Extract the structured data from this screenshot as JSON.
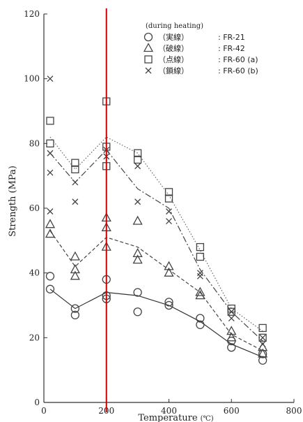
{
  "chart_data": {
    "type": "scatter",
    "xlabel": "Temperature",
    "xunit": "(℃)",
    "ylabel": "Strength (MPa)",
    "xlim": [
      0,
      800
    ],
    "ylim": [
      0,
      120
    ],
    "x_ticks": [
      "0",
      "200",
      "400",
      "600",
      "800"
    ],
    "y_ticks": [
      "0",
      "20",
      "40",
      "60",
      "80",
      "100",
      "120"
    ],
    "legend_title": "(during heating)",
    "legend_position": "top-right",
    "grid": false,
    "vertical_marker": {
      "x": 200,
      "color": "#cc0000"
    },
    "series": [
      {
        "name": "FR-21",
        "label": "〇（実線）",
        "marker": "circle",
        "line_style": "solid",
        "points": [
          [
            20,
            39
          ],
          [
            20,
            35
          ],
          [
            100,
            29
          ],
          [
            100,
            27
          ],
          [
            200,
            38
          ],
          [
            200,
            33
          ],
          [
            200,
            32
          ],
          [
            300,
            34
          ],
          [
            300,
            28
          ],
          [
            400,
            31
          ],
          [
            400,
            30
          ],
          [
            500,
            26
          ],
          [
            500,
            24
          ],
          [
            600,
            19
          ],
          [
            600,
            17
          ],
          [
            700,
            15
          ],
          [
            700,
            13
          ]
        ],
        "trend": [
          [
            20,
            35
          ],
          [
            100,
            29
          ],
          [
            200,
            34
          ],
          [
            300,
            33
          ],
          [
            400,
            30
          ],
          [
            500,
            25
          ],
          [
            600,
            18
          ],
          [
            700,
            14
          ]
        ]
      },
      {
        "name": "FR-42",
        "label": "△（破線）",
        "marker": "triangle",
        "line_style": "dashed",
        "points": [
          [
            20,
            55
          ],
          [
            20,
            52
          ],
          [
            100,
            45
          ],
          [
            100,
            41
          ],
          [
            100,
            39
          ],
          [
            200,
            57
          ],
          [
            200,
            54
          ],
          [
            200,
            48
          ],
          [
            300,
            56
          ],
          [
            300,
            46
          ],
          [
            300,
            44
          ],
          [
            400,
            42
          ],
          [
            400,
            40
          ],
          [
            500,
            34
          ],
          [
            500,
            33
          ],
          [
            600,
            22
          ],
          [
            600,
            20
          ],
          [
            700,
            17
          ],
          [
            700,
            15
          ]
        ],
        "trend": [
          [
            20,
            53
          ],
          [
            100,
            42
          ],
          [
            200,
            51
          ],
          [
            300,
            48
          ],
          [
            400,
            41
          ],
          [
            500,
            34
          ],
          [
            600,
            21
          ],
          [
            700,
            16
          ]
        ]
      },
      {
        "name": "FR-60 (a)",
        "label": "□（点線）",
        "marker": "square",
        "line_style": "dotted",
        "points": [
          [
            20,
            87
          ],
          [
            20,
            80
          ],
          [
            100,
            74
          ],
          [
            100,
            72
          ],
          [
            200,
            93
          ],
          [
            200,
            79
          ],
          [
            200,
            73
          ],
          [
            300,
            77
          ],
          [
            300,
            75
          ],
          [
            400,
            65
          ],
          [
            400,
            63
          ],
          [
            500,
            48
          ],
          [
            500,
            45
          ],
          [
            600,
            29
          ],
          [
            600,
            28
          ],
          [
            700,
            23
          ],
          [
            700,
            20
          ]
        ],
        "trend": [
          [
            20,
            82
          ],
          [
            100,
            72
          ],
          [
            200,
            82
          ],
          [
            300,
            77
          ],
          [
            400,
            64
          ],
          [
            500,
            47
          ],
          [
            600,
            29
          ],
          [
            700,
            22
          ]
        ]
      },
      {
        "name": "FR-60 (b)",
        "label": "×（鎖線）",
        "marker": "cross",
        "line_style": "dashdot",
        "points": [
          [
            20,
            100
          ],
          [
            20,
            77
          ],
          [
            20,
            71
          ],
          [
            20,
            59
          ],
          [
            100,
            68
          ],
          [
            100,
            62
          ],
          [
            200,
            78
          ],
          [
            200,
            76
          ],
          [
            300,
            73
          ],
          [
            300,
            62
          ],
          [
            400,
            59
          ],
          [
            400,
            56
          ],
          [
            500,
            40
          ],
          [
            500,
            39
          ],
          [
            600,
            28
          ],
          [
            600,
            26
          ],
          [
            700,
            20
          ],
          [
            700,
            18
          ]
        ],
        "trend": [
          [
            20,
            77
          ],
          [
            100,
            68
          ],
          [
            200,
            78
          ],
          [
            300,
            66
          ],
          [
            400,
            60
          ],
          [
            500,
            41
          ],
          [
            600,
            28
          ],
          [
            700,
            19
          ]
        ]
      }
    ]
  }
}
